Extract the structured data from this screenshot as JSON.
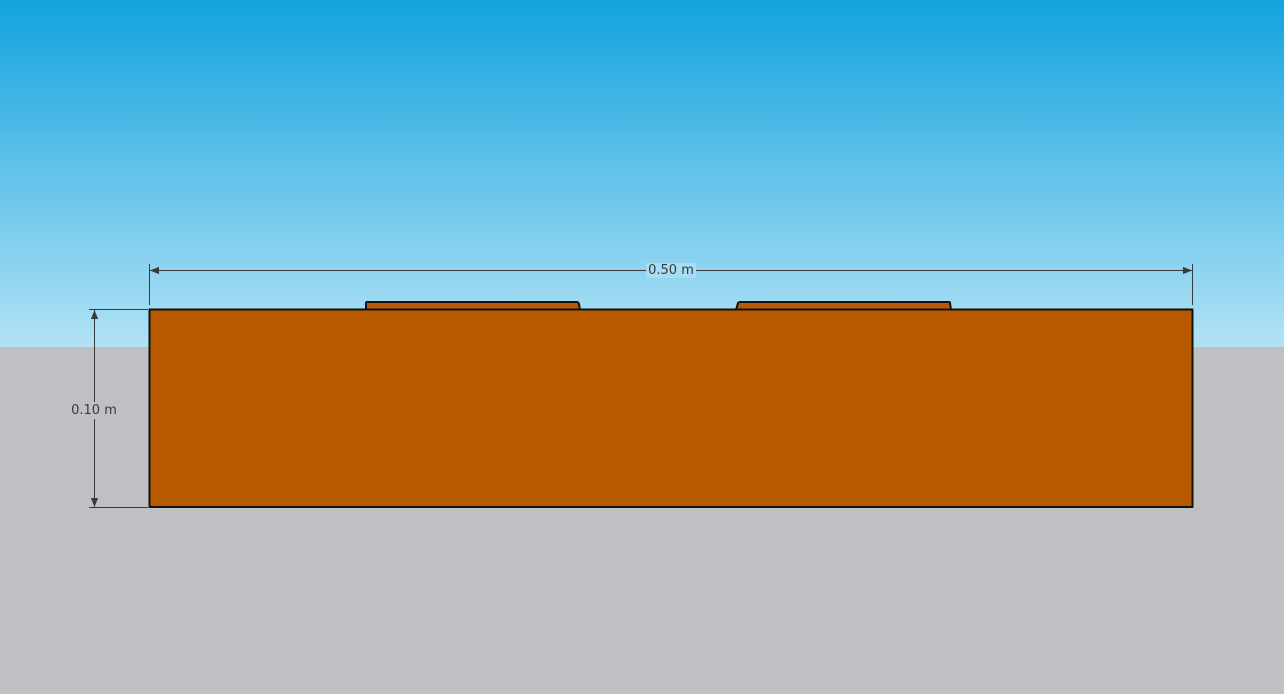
{
  "scene": {
    "colors": {
      "sky_top": "#12a3de",
      "sky_bottom": "#b2e2f5",
      "ground": "#bfc0c4",
      "solid": "#b85900",
      "edge": "#111111",
      "dimension": "#3a3a3a"
    }
  },
  "dimensions": {
    "width_label": "0.50 m",
    "height_label": "0.10 m"
  }
}
